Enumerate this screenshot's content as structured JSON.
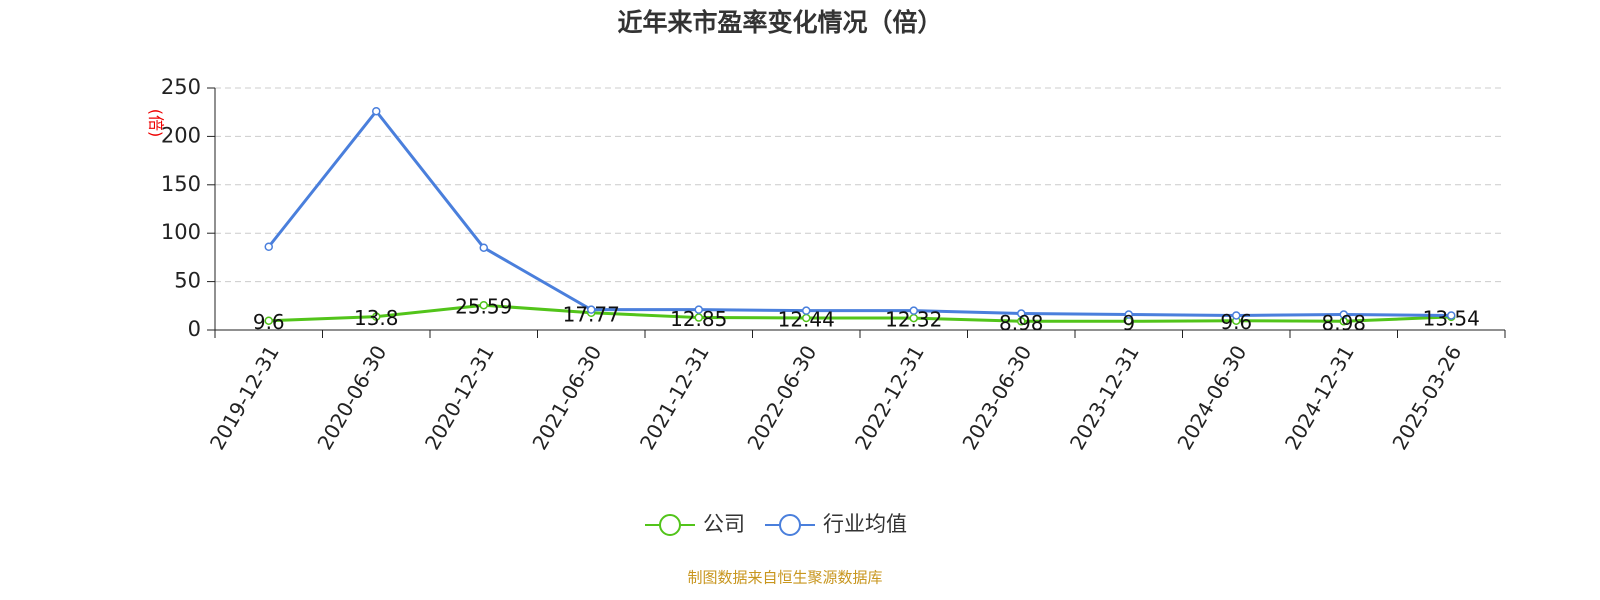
{
  "chart_data": {
    "type": "line",
    "title": "近年来市盈率变化情况（倍）",
    "y_label": "(倍)",
    "categories": [
      "2019-12-31",
      "2020-06-30",
      "2020-12-31",
      "2021-06-30",
      "2021-12-31",
      "2022-06-30",
      "2022-12-31",
      "2023-06-30",
      "2023-12-31",
      "2024-06-30",
      "2024-12-31",
      "2025-03-26"
    ],
    "series": [
      {
        "name": "公司",
        "color": "#52c41a",
        "data_labels": true,
        "values": [
          9.6,
          13.8,
          25.59,
          17.77,
          12.85,
          12.44,
          12.32,
          8.98,
          9,
          9.6,
          8.98,
          13.54
        ]
      },
      {
        "name": "行业均值",
        "color": "#4a7fdc",
        "data_labels": false,
        "values": [
          86,
          226,
          85,
          21,
          21,
          20,
          20,
          17,
          16,
          15,
          16,
          15
        ]
      }
    ],
    "ylim": [
      0,
      250
    ],
    "yticks": [
      0,
      50,
      100,
      150,
      200,
      250
    ],
    "grid": true,
    "legend": "bottom",
    "source": "制图数据来自恒生聚源数据库"
  }
}
